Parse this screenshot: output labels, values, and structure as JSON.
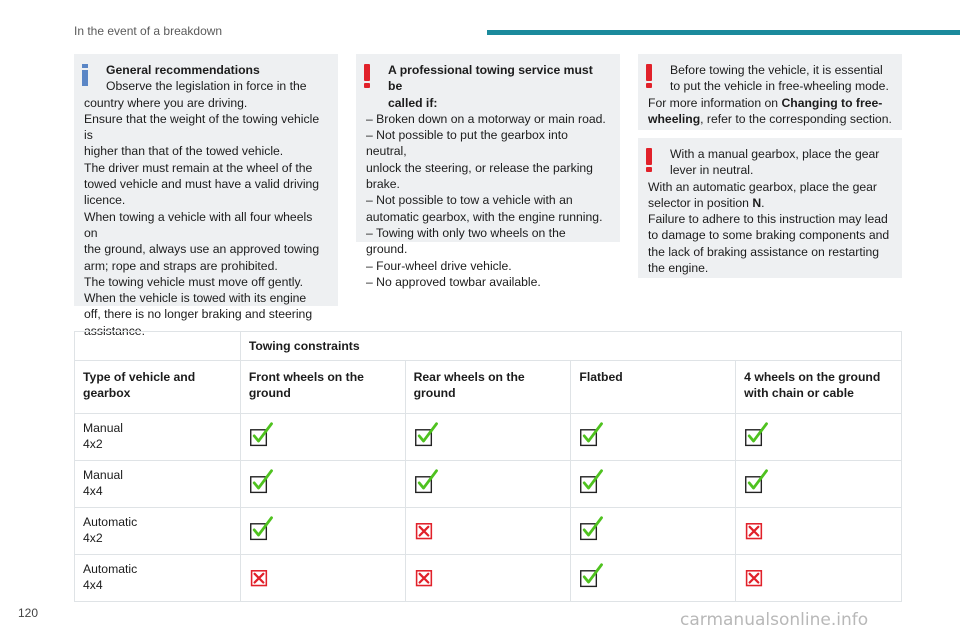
{
  "header": {
    "section_title": "In the event of a breakdown",
    "accent_color": "#1b8a9c"
  },
  "notes": {
    "general": {
      "heading": "General recommendations",
      "lines": [
        "Observe the legislation in force in the",
        "country where you are driving.",
        "Ensure that the weight of the towing vehicle is",
        "higher than that of the towed vehicle.",
        "The driver must remain at the wheel of the",
        "towed vehicle and must have a valid driving",
        "licence.",
        "When towing a vehicle with all four wheels on",
        "the ground, always use an approved towing",
        "arm; rope and straps are prohibited.",
        "The towing vehicle must move off gently.",
        "When the vehicle is towed with its engine",
        "off, there is no longer braking and steering",
        "assistance."
      ]
    },
    "professional": {
      "heading_1": "A professional towing service must be",
      "heading_2": "called if:",
      "lines": [
        "– Broken down on a motorway or main road.",
        "– Not possible to put the gearbox into neutral,",
        "unlock the steering, or release the parking",
        "brake.",
        "– Not possible to tow a vehicle with an",
        "automatic gearbox, with the engine running.",
        "– Towing with only two wheels on the ground.",
        "– Four-wheel drive vehicle.",
        "– No approved towbar available."
      ]
    },
    "freewheel": {
      "line_1": "Before towing the vehicle, it is essential",
      "line_2": "to put the vehicle in free-wheeling mode.",
      "line_3": "For more information on ",
      "bold_1": "Changing to free-",
      "bold_2": "wheeling",
      "line_4": ", refer to the corresponding section."
    },
    "gearbox": {
      "line_1": "With a manual gearbox, place the gear",
      "line_2": "lever in neutral.",
      "line_3": "With an automatic gearbox, place the gear",
      "line_4_pre": "selector in position ",
      "line_4_bold": "N",
      "line_4_post": ".",
      "lines": [
        "Failure to adhere to this instruction may lead",
        "to damage to some braking components and",
        "the lack of braking assistance on restarting",
        "the engine."
      ]
    }
  },
  "table": {
    "title": "Towing constraints",
    "columns": [
      "Type of vehicle and gearbox",
      "Front wheels on the ground",
      "Rear wheels on the ground",
      "Flatbed",
      "4 wheels on the ground with chain or cable"
    ],
    "rows": [
      {
        "type": "Manual",
        "drive": "4x2",
        "allowed": [
          true,
          true,
          true,
          true
        ]
      },
      {
        "type": "Manual",
        "drive": "4x4",
        "allowed": [
          true,
          true,
          true,
          true
        ]
      },
      {
        "type": "Automatic",
        "drive": "4x2",
        "allowed": [
          true,
          false,
          true,
          false
        ]
      },
      {
        "type": "Automatic",
        "drive": "4x4",
        "allowed": [
          false,
          false,
          true,
          false
        ]
      }
    ],
    "icons": {
      "allowed": "check-mark-icon",
      "forbidden": "cross-mark-icon"
    },
    "colors": {
      "check": "#4fc21f",
      "check_box": "#222222",
      "cross": "#e1212a"
    }
  },
  "footer": {
    "page_number": "120",
    "watermark": "carmanualsonline.info"
  }
}
